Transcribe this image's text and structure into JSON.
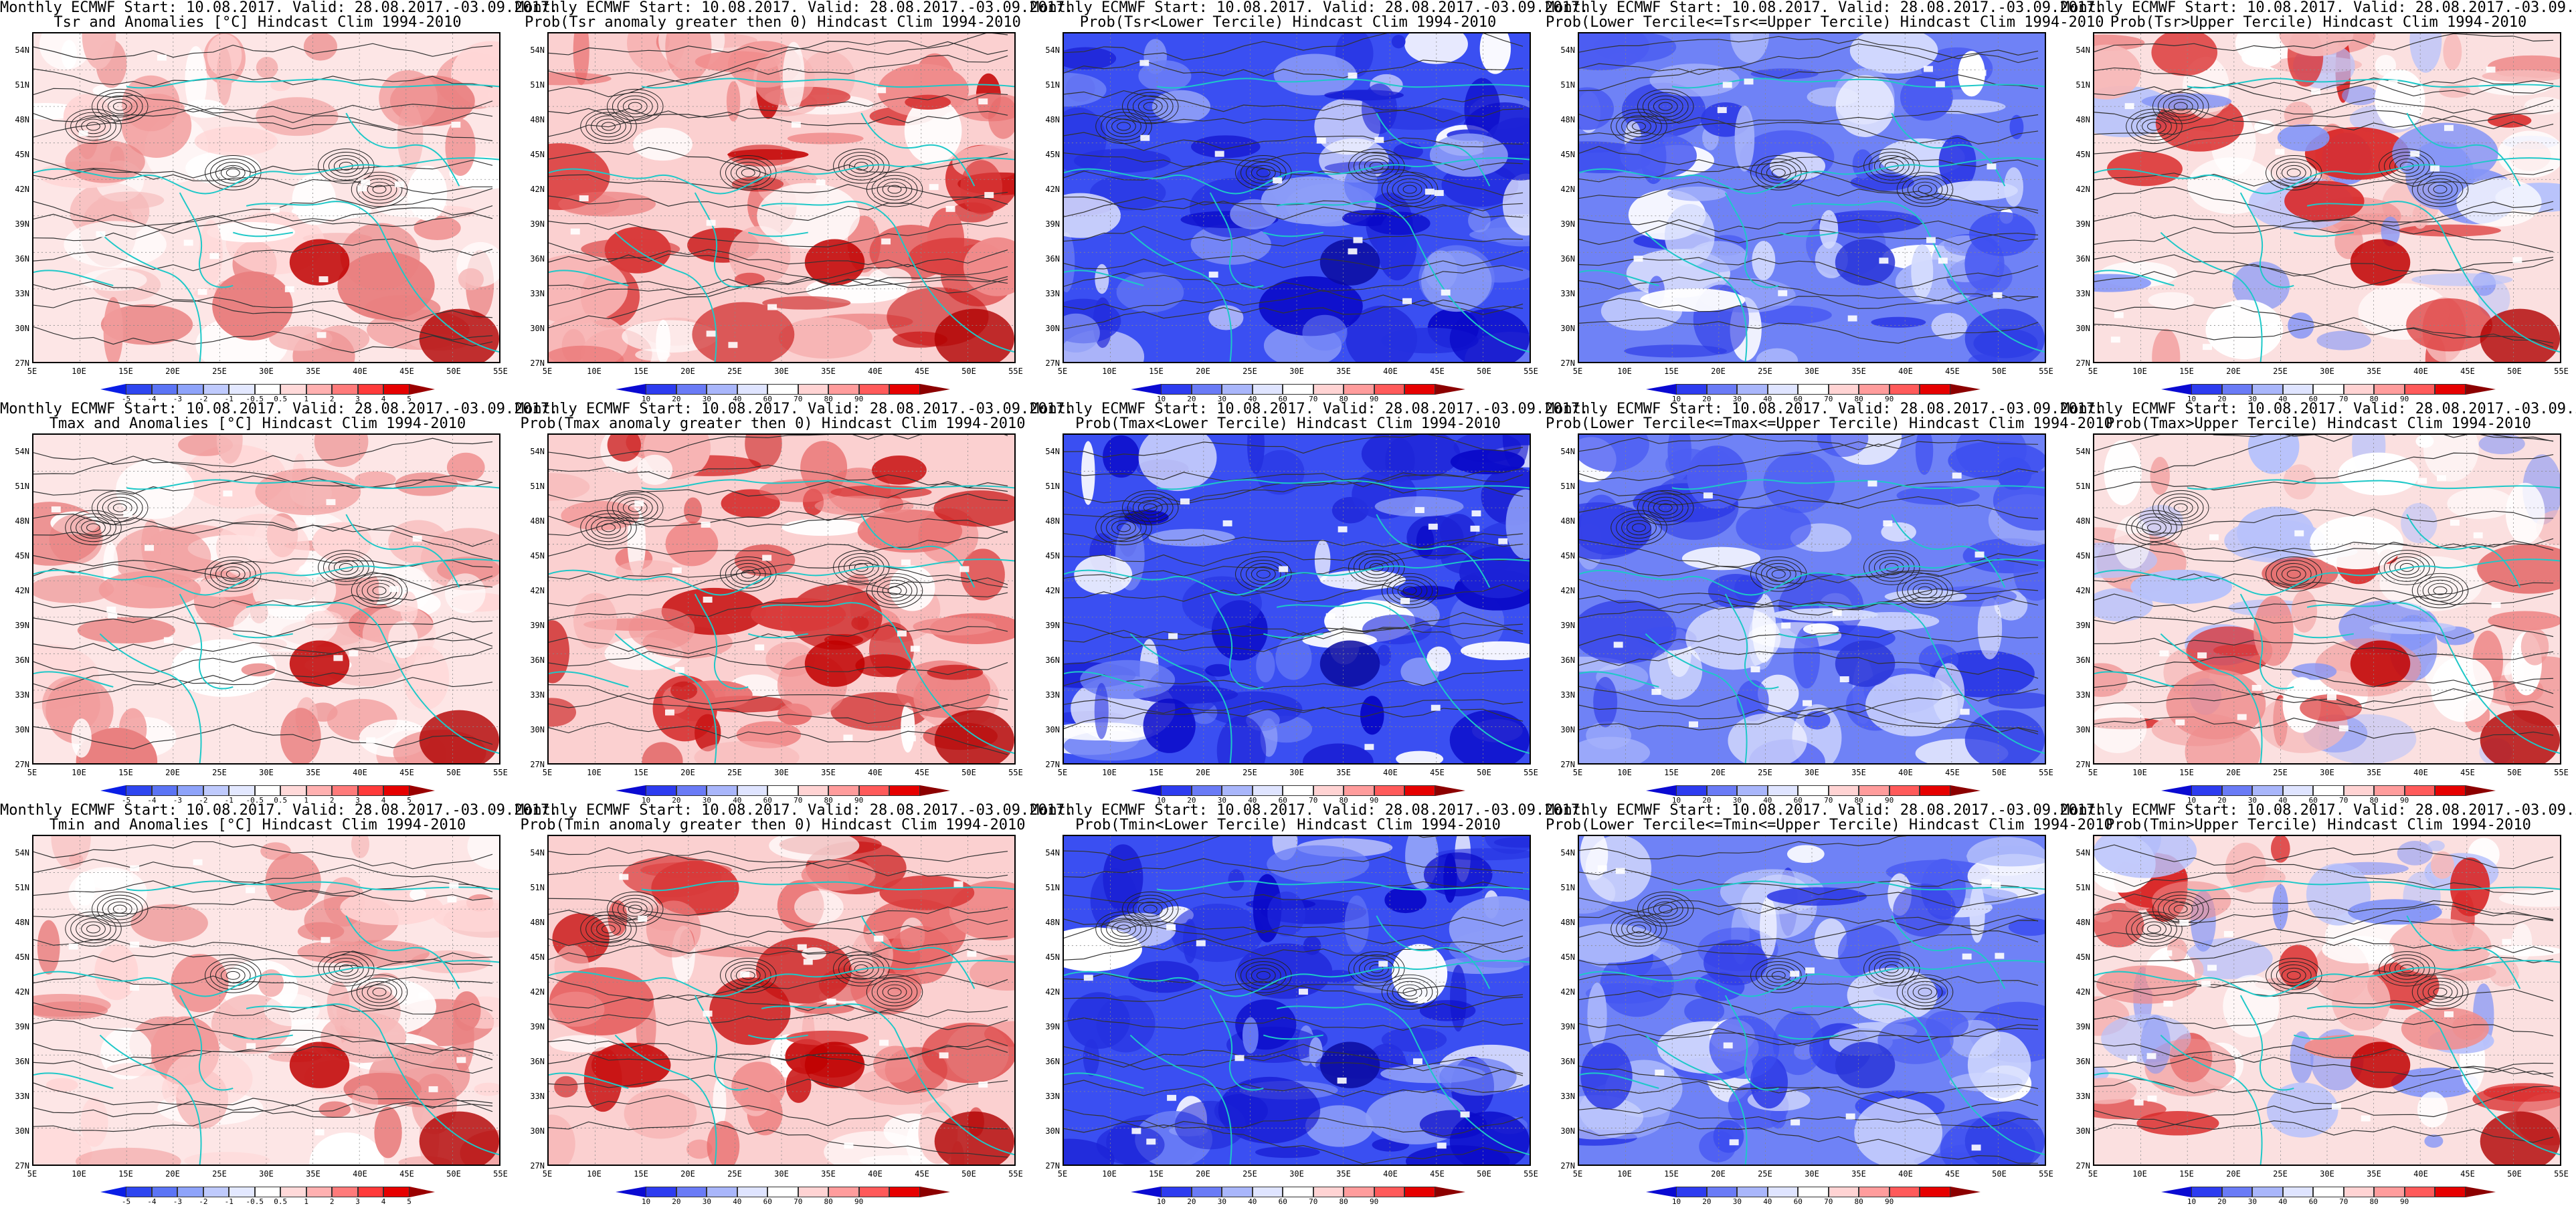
{
  "title_line1": "Monthly ECMWF Start: 10.08.2017. Valid: 28.08.2017.-03.09.2017.",
  "title_line1_row1_col2": "Monthly ECMWF Start: 10.08.2017. Valid: 28.08.2017.-03.09.2017.",
  "lat_labels": [
    "54N",
    "51N",
    "48N",
    "45N",
    "42N",
    "39N",
    "36N",
    "33N",
    "30N",
    "27N"
  ],
  "lon_labels": [
    "5E",
    "10E",
    "15E",
    "20E",
    "25E",
    "30E",
    "35E",
    "40E",
    "45E",
    "50E",
    "55E"
  ],
  "colorbars": {
    "anomaly": {
      "labels": [
        "-5",
        "-4",
        "-3",
        "-2",
        "-1",
        "-0.5",
        "0.5",
        "1",
        "2",
        "3",
        "4",
        "5"
      ],
      "colors": [
        "#0a1ee6",
        "#2e46f0",
        "#5b74f5",
        "#8ea3fa",
        "#bfcafd",
        "#e3e8ff",
        "#ffffff",
        "#ffd9d9",
        "#ffb0b0",
        "#ff7a7a",
        "#ff3a3a",
        "#e60000",
        "#9a0000"
      ]
    },
    "prob": {
      "labels": [
        "10",
        "20",
        "30",
        "40",
        "60",
        "70",
        "80",
        "90"
      ],
      "colors": [
        "#0a0ad2",
        "#2d3cf0",
        "#6a7bf6",
        "#a9b6fb",
        "#dfe4ff",
        "#ffffff",
        "#ffd3d3",
        "#ff9c9c",
        "#ff5a5a",
        "#e60000",
        "#8c0000"
      ]
    }
  },
  "panels": [
    {
      "id": "tsr-anom",
      "line2": "Tsr and Anomalies [°C] Hindcast Clim 1994-2010",
      "cbar": "anomaly",
      "theme": "anom"
    },
    {
      "id": "tsr-pos",
      "line2": "Prob(Tsr anomaly greater then 0) Hindcast Clim 1994-2010",
      "cbar": "prob",
      "theme": "red"
    },
    {
      "id": "tsr-lower",
      "line2": "Prob(Tsr<Lower Tercile) Hindcast Clim 1994-2010",
      "cbar": "prob",
      "theme": "blue"
    },
    {
      "id": "tsr-middle",
      "line2": "Prob(Lower Tercile<=Tsr<=Upper Tercile) Hindcast Clim 1994-2010",
      "cbar": "prob",
      "theme": "mid"
    },
    {
      "id": "tsr-upper",
      "line2": "Prob(Tsr>Upper Tercile) Hindcast Clim 1994-2010",
      "cbar": "prob",
      "theme": "upper"
    },
    {
      "id": "tmax-anom",
      "line2": "Tmax and Anomalies [°C] Hindcast Clim 1994-2010",
      "cbar": "anomaly",
      "theme": "anom"
    },
    {
      "id": "tmax-pos",
      "line2": "Prob(Tmax anomaly greater then 0) Hindcast Clim 1994-2010",
      "cbar": "prob",
      "theme": "red"
    },
    {
      "id": "tmax-lower",
      "line2": "Prob(Tmax<Lower Tercile) Hindcast Clim 1994-2010",
      "cbar": "prob",
      "theme": "blue"
    },
    {
      "id": "tmax-middle",
      "line2": "Prob(Lower Tercile<=Tmax<=Upper Tercile) Hindcast Clim 1994-2010",
      "cbar": "prob",
      "theme": "mid"
    },
    {
      "id": "tmax-upper",
      "line2": "Prob(Tmax>Upper Tercile) Hindcast Clim 1994-2010",
      "cbar": "prob",
      "theme": "upper"
    },
    {
      "id": "tmin-anom",
      "line2": "Tmin and Anomalies [°C] Hindcast Clim 1994-2010",
      "cbar": "anomaly",
      "theme": "anom"
    },
    {
      "id": "tmin-pos",
      "line2": "Prob(Tmin anomaly greater then 0) Hindcast Clim 1994-2010",
      "cbar": "prob",
      "theme": "red"
    },
    {
      "id": "tmin-lower",
      "line2": "Prob(Tmin<Lower Tercile) Hindcast Clim 1994-2010",
      "cbar": "prob",
      "theme": "blue"
    },
    {
      "id": "tmin-middle",
      "line2": "Prob(Lower Tercile<=Tmin<=Upper Tercile) Hindcast Clim 1994-2010",
      "cbar": "prob",
      "theme": "mid"
    },
    {
      "id": "tmin-upper",
      "line2": "Prob(Tmin>Upper Tercile) Hindcast Clim 1994-2010",
      "cbar": "prob",
      "theme": "upper"
    }
  ]
}
